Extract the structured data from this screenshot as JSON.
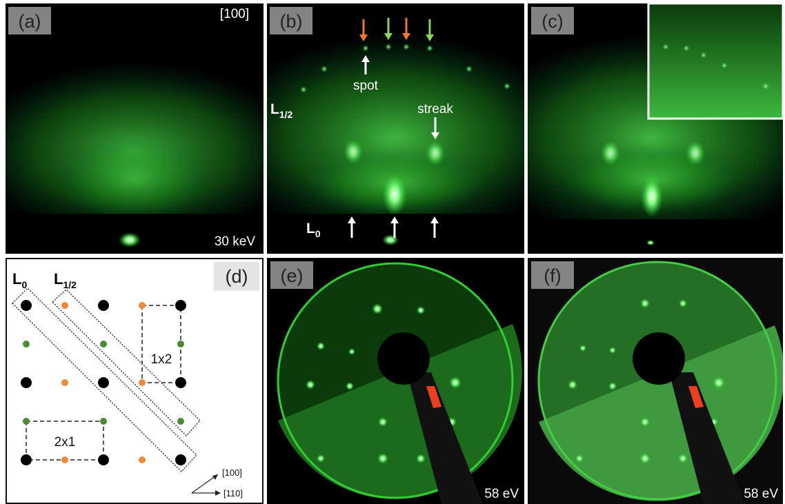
{
  "panels": {
    "a": {
      "label": "(a)",
      "orientation": "[100]",
      "energy": "30 keV"
    },
    "b": {
      "label": "(b)",
      "spot": "spot",
      "streak": "streak",
      "l_half": {
        "main": "L",
        "sub": "1/2"
      },
      "l_zero": {
        "main": "L",
        "sub": "0"
      }
    },
    "c": {
      "label": "(c)"
    },
    "d": {
      "label": "(d)",
      "l_zero": {
        "main": "L",
        "sub": "0"
      },
      "l_half": {
        "main": "L",
        "sub": "1/2"
      },
      "cell_1x2": "1x2",
      "cell_2x1": "2x1",
      "axis_100": "[100]",
      "axis_110": "[110]"
    },
    "e": {
      "label": "(e)",
      "energy": "58 eV"
    },
    "f": {
      "label": "(f)",
      "energy": "58 eV"
    }
  }
}
